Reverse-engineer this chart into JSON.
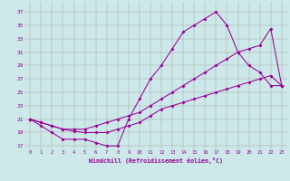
{
  "xlabel": "Windchill (Refroidissement éolien,°C)",
  "x_ticks": [
    0,
    1,
    2,
    3,
    4,
    5,
    6,
    7,
    8,
    9,
    10,
    11,
    12,
    13,
    14,
    15,
    16,
    17,
    18,
    19,
    20,
    21,
    22,
    23
  ],
  "y_ticks": [
    17,
    19,
    21,
    23,
    25,
    27,
    29,
    31,
    33,
    35,
    37
  ],
  "ylim": [
    16.5,
    38.5
  ],
  "xlim": [
    -0.5,
    23.5
  ],
  "background_color": "#cce8e8",
  "line_color": "#990099",
  "grid_color": "#aaaaaa",
  "line1_x": [
    0,
    1,
    2,
    3,
    4,
    5,
    6,
    7,
    8,
    9,
    10,
    11,
    12,
    13,
    14,
    15,
    16,
    17,
    18,
    19,
    20,
    21,
    22,
    23
  ],
  "line1_y": [
    21,
    20,
    19,
    18,
    18,
    18,
    17.5,
    17,
    17,
    21,
    24,
    27,
    29,
    31.5,
    34,
    35,
    36,
    37,
    35,
    31,
    29,
    28,
    26,
    26
  ],
  "line2_x": [
    0,
    1,
    2,
    3,
    4,
    5,
    6,
    7,
    8,
    9,
    10,
    11,
    12,
    13,
    14,
    15,
    16,
    17,
    18,
    19,
    20,
    21,
    22,
    23
  ],
  "line2_y": [
    21,
    20.5,
    20,
    19.5,
    19.5,
    19.5,
    20,
    20.5,
    21,
    21.5,
    22,
    23,
    24,
    25,
    26,
    27,
    28,
    29,
    30,
    31,
    31.5,
    32,
    34.5,
    26
  ],
  "line3_x": [
    0,
    1,
    2,
    3,
    4,
    5,
    6,
    7,
    8,
    9,
    10,
    11,
    12,
    13,
    14,
    15,
    16,
    17,
    18,
    19,
    20,
    21,
    22,
    23
  ],
  "line3_y": [
    21,
    20.5,
    20,
    19.5,
    19.2,
    19,
    19,
    19,
    19.5,
    20,
    20.5,
    21.5,
    22.5,
    23,
    23.5,
    24,
    24.5,
    25,
    25.5,
    26,
    26.5,
    27,
    27.5,
    26
  ]
}
